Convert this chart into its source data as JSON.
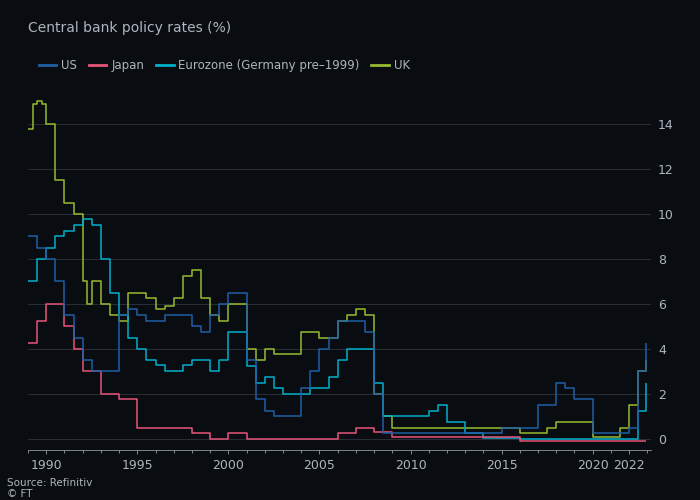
{
  "title": "Central bank policy rates (%)",
  "source": "Source: Refinitiv",
  "watermark": "© FT",
  "legend": [
    {
      "label": "US",
      "color": "#1f5fa6"
    },
    {
      "label": "Japan",
      "color": "#e8547a"
    },
    {
      "label": "Eurozone (Germany pre–1999)",
      "color": "#00b0ca"
    },
    {
      "label": "UK",
      "color": "#96bb2f"
    }
  ],
  "ylim": [
    -0.5,
    15.5
  ],
  "yticks": [
    0,
    2,
    4,
    6,
    8,
    10,
    12,
    14
  ],
  "xtick_positions": [
    1990,
    1995,
    2000,
    2005,
    2010,
    2015,
    2020,
    2022
  ],
  "background_color": "#090d12",
  "grid_color": "#2a2f38",
  "text_color": "#adb5bd",
  "series": {
    "US": {
      "color": "#1f5fa6",
      "x": [
        1989.0,
        1989.5,
        1990.0,
        1990.5,
        1991.0,
        1991.5,
        1992.0,
        1992.5,
        1993.0,
        1993.5,
        1994.0,
        1994.5,
        1995.0,
        1995.5,
        1996.0,
        1996.5,
        1997.0,
        1997.5,
        1998.0,
        1998.5,
        1999.0,
        1999.5,
        2000.0,
        2000.5,
        2001.0,
        2001.5,
        2002.0,
        2002.5,
        2003.0,
        2003.5,
        2004.0,
        2004.5,
        2005.0,
        2005.5,
        2006.0,
        2006.5,
        2007.0,
        2007.5,
        2008.0,
        2008.5,
        2009.0,
        2009.5,
        2010.0,
        2011.0,
        2012.0,
        2013.0,
        2014.0,
        2015.0,
        2015.5,
        2016.0,
        2016.5,
        2017.0,
        2017.5,
        2018.0,
        2018.5,
        2019.0,
        2019.5,
        2020.0,
        2020.5,
        2021.0,
        2021.5,
        2022.0,
        2022.5,
        2022.9
      ],
      "y": [
        9.0,
        8.5,
        8.0,
        7.0,
        5.5,
        4.5,
        3.5,
        3.0,
        3.0,
        3.0,
        5.5,
        5.75,
        5.5,
        5.25,
        5.25,
        5.5,
        5.5,
        5.5,
        5.0,
        4.75,
        5.5,
        6.0,
        6.5,
        6.5,
        3.5,
        1.75,
        1.25,
        1.0,
        1.0,
        1.0,
        2.25,
        3.0,
        4.0,
        4.5,
        5.25,
        5.25,
        5.25,
        4.75,
        2.0,
        0.25,
        0.25,
        0.25,
        0.25,
        0.25,
        0.25,
        0.25,
        0.25,
        0.5,
        0.5,
        0.5,
        0.5,
        1.5,
        1.5,
        2.5,
        2.25,
        1.75,
        1.75,
        0.25,
        0.25,
        0.25,
        0.25,
        0.5,
        3.0,
        4.25
      ]
    },
    "Japan": {
      "color": "#e8547a",
      "x": [
        1989.0,
        1989.5,
        1990.0,
        1990.5,
        1991.0,
        1991.5,
        1992.0,
        1993.0,
        1994.0,
        1995.0,
        1995.5,
        1996.0,
        1997.0,
        1998.0,
        1999.0,
        2000.0,
        2001.0,
        2002.0,
        2003.0,
        2004.0,
        2005.0,
        2006.0,
        2007.0,
        2008.0,
        2009.0,
        2010.0,
        2011.0,
        2012.0,
        2013.0,
        2014.0,
        2015.0,
        2016.0,
        2017.0,
        2018.0,
        2019.0,
        2020.0,
        2021.0,
        2022.0,
        2022.9
      ],
      "y": [
        4.25,
        5.25,
        6.0,
        6.0,
        5.0,
        4.0,
        3.0,
        2.0,
        1.75,
        0.5,
        0.5,
        0.5,
        0.5,
        0.25,
        0.0,
        0.25,
        0.0,
        0.0,
        0.0,
        0.0,
        0.0,
        0.25,
        0.5,
        0.3,
        0.1,
        0.1,
        0.1,
        0.1,
        0.1,
        0.1,
        0.1,
        -0.1,
        -0.1,
        -0.1,
        -0.1,
        -0.1,
        -0.1,
        -0.1,
        -0.1
      ]
    },
    "Eurozone": {
      "color": "#00b0ca",
      "x": [
        1989.0,
        1989.5,
        1990.0,
        1990.5,
        1991.0,
        1991.5,
        1992.0,
        1992.5,
        1993.0,
        1993.5,
        1994.0,
        1994.5,
        1995.0,
        1995.5,
        1996.0,
        1996.5,
        1997.0,
        1997.5,
        1998.0,
        1998.5,
        1999.0,
        1999.5,
        2000.0,
        2000.5,
        2001.0,
        2001.5,
        2002.0,
        2002.5,
        2003.0,
        2003.5,
        2004.0,
        2004.5,
        2005.0,
        2005.5,
        2006.0,
        2006.5,
        2007.0,
        2007.5,
        2008.0,
        2008.5,
        2009.0,
        2009.5,
        2010.0,
        2010.5,
        2011.0,
        2011.5,
        2012.0,
        2012.5,
        2013.0,
        2014.0,
        2015.0,
        2016.0,
        2017.0,
        2018.0,
        2019.0,
        2020.0,
        2021.0,
        2022.0,
        2022.5,
        2022.9
      ],
      "y": [
        7.0,
        8.0,
        8.5,
        9.0,
        9.25,
        9.5,
        9.75,
        9.5,
        8.0,
        6.5,
        5.5,
        4.5,
        4.0,
        3.5,
        3.3,
        3.0,
        3.0,
        3.3,
        3.5,
        3.5,
        3.0,
        3.5,
        4.75,
        4.75,
        3.25,
        2.5,
        2.75,
        2.25,
        2.0,
        2.0,
        2.0,
        2.25,
        2.25,
        2.75,
        3.5,
        4.0,
        4.0,
        4.0,
        2.5,
        1.0,
        1.0,
        1.0,
        1.0,
        1.0,
        1.25,
        1.5,
        0.75,
        0.75,
        0.25,
        0.05,
        0.05,
        0.0,
        0.0,
        0.0,
        0.0,
        0.0,
        0.0,
        0.0,
        1.25,
        2.5
      ]
    },
    "UK": {
      "color": "#96bb2f",
      "x": [
        1989.0,
        1989.25,
        1989.5,
        1989.75,
        1990.0,
        1990.5,
        1991.0,
        1991.5,
        1992.0,
        1992.25,
        1992.5,
        1993.0,
        1993.5,
        1994.0,
        1994.5,
        1995.0,
        1995.5,
        1996.0,
        1996.5,
        1997.0,
        1997.5,
        1998.0,
        1998.5,
        1999.0,
        1999.5,
        2000.0,
        2000.5,
        2001.0,
        2001.5,
        2002.0,
        2002.5,
        2003.0,
        2003.5,
        2004.0,
        2004.5,
        2005.0,
        2005.5,
        2006.0,
        2006.5,
        2007.0,
        2007.5,
        2008.0,
        2008.5,
        2009.0,
        2009.5,
        2010.0,
        2011.0,
        2012.0,
        2013.0,
        2014.0,
        2015.0,
        2016.0,
        2016.5,
        2017.0,
        2017.5,
        2018.0,
        2018.5,
        2019.0,
        2020.0,
        2020.25,
        2021.0,
        2021.5,
        2022.0,
        2022.5,
        2022.9
      ],
      "y": [
        13.75,
        14.875,
        15.0,
        14.875,
        14.0,
        11.5,
        10.5,
        10.0,
        7.0,
        6.0,
        7.0,
        6.0,
        5.5,
        5.25,
        6.5,
        6.5,
        6.25,
        5.75,
        5.9,
        6.25,
        7.25,
        7.5,
        6.25,
        5.5,
        5.25,
        6.0,
        6.0,
        4.0,
        3.5,
        4.0,
        3.75,
        3.75,
        3.75,
        4.75,
        4.75,
        4.5,
        4.5,
        5.25,
        5.5,
        5.75,
        5.5,
        2.0,
        1.0,
        0.5,
        0.5,
        0.5,
        0.5,
        0.5,
        0.5,
        0.5,
        0.5,
        0.25,
        0.25,
        0.25,
        0.5,
        0.75,
        0.75,
        0.75,
        0.1,
        0.1,
        0.1,
        0.5,
        1.5,
        3.0,
        3.5
      ]
    }
  }
}
